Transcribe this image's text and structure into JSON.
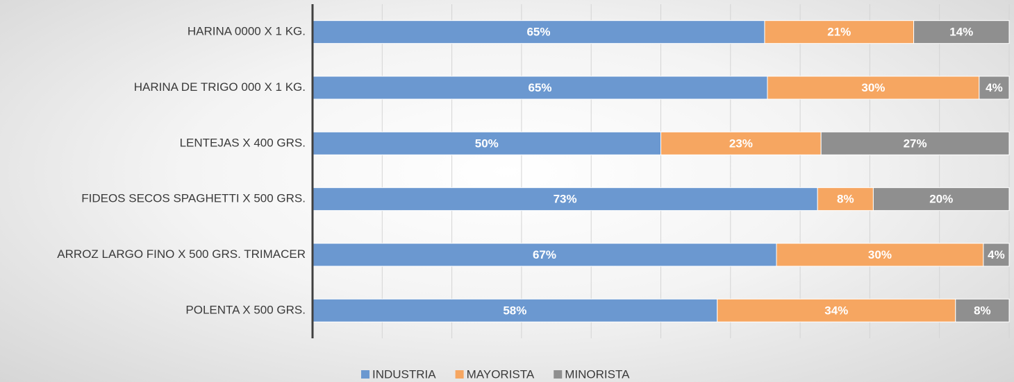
{
  "chart_data": {
    "type": "stacked-barh",
    "categories": [
      "HARINA 0000 X 1 KG.",
      "HARINA DE TRIGO 000 X 1 KG.",
      "LENTEJAS X 400 GRS.",
      "FIDEOS SECOS SPAGHETTI X 500 GRS.",
      "ARROZ LARGO FINO X 500 GRS. TRIMACER",
      "POLENTA X 500 GRS."
    ],
    "series": [
      {
        "name": "INDUSTRIA",
        "color": "#6b98d0",
        "values": [
          64.9,
          65.3,
          50.0,
          72.5,
          66.6,
          58.1
        ],
        "value_labels": [
          "65%",
          "65%",
          "50%",
          "73%",
          "67%",
          "58%"
        ]
      },
      {
        "name": "MAYORISTA",
        "color": "#f6a661",
        "values": [
          21.4,
          30.4,
          23.0,
          8.0,
          29.7,
          34.2
        ],
        "value_labels": [
          "21%",
          "30%",
          "23%",
          "8%",
          "30%",
          "34%"
        ]
      },
      {
        "name": "MINORISTA",
        "color": "#8f8f8f",
        "values": [
          13.7,
          4.3,
          27.0,
          19.5,
          3.7,
          7.7
        ],
        "value_labels": [
          "14%",
          "4%",
          "27%",
          "20%",
          "4%",
          "8%"
        ]
      }
    ],
    "xlim": [
      0,
      100
    ],
    "xticks": [
      0,
      10,
      20,
      30,
      40,
      50,
      60,
      70,
      80,
      90,
      100
    ],
    "grid": true,
    "legend": "bottom"
  }
}
